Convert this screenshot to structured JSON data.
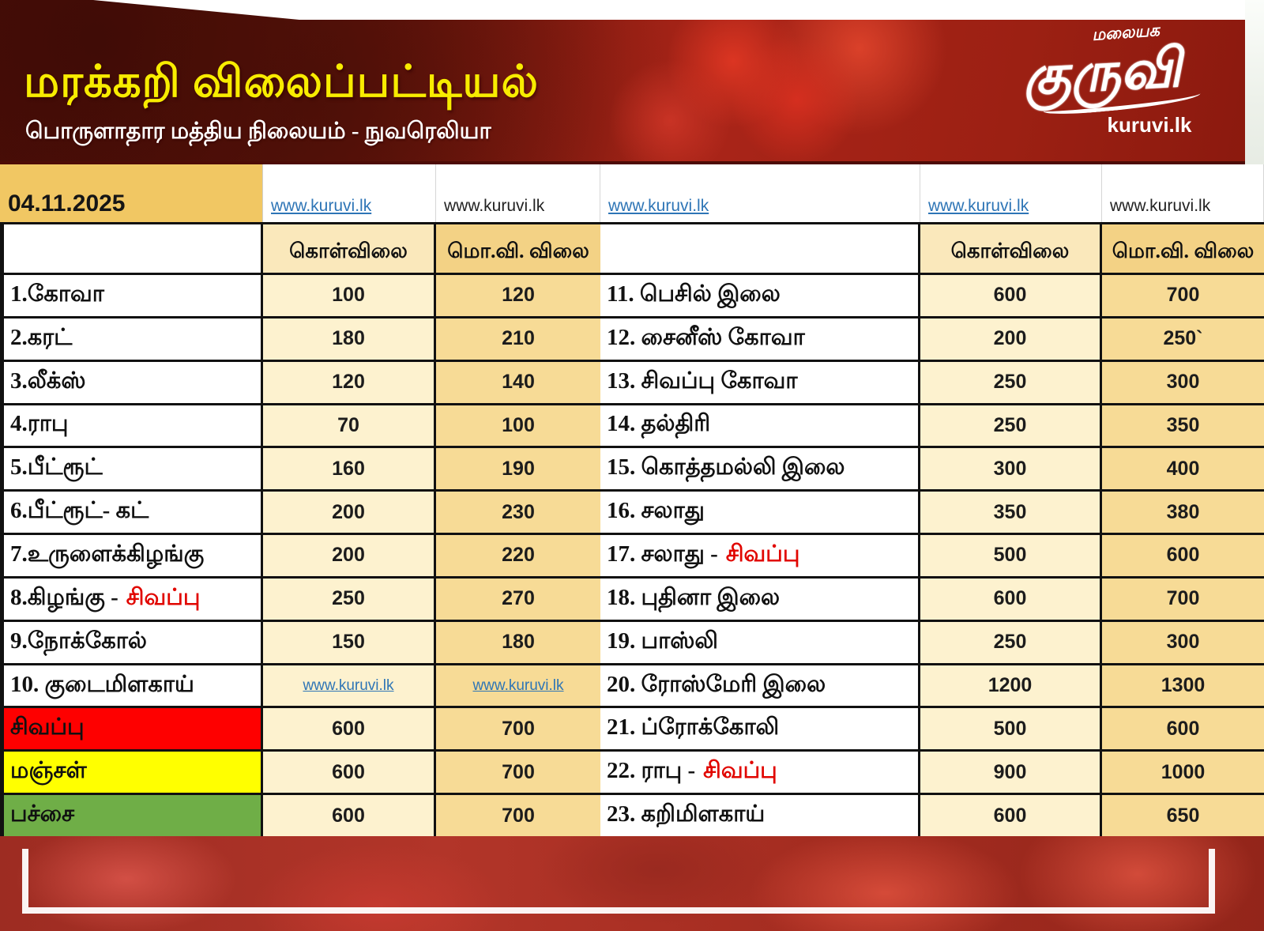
{
  "banner": {
    "title": "மரக்கறி விலைப்பட்டியல்",
    "subtitle": "பொருளாதார மத்திய நிலையம் - நுவரெலியா",
    "logo_top": "மலையக",
    "logo_main": "குருவி",
    "logo_site": "kuruvi.lk"
  },
  "date_row": {
    "date": "04.11.2025",
    "links": [
      {
        "text": "www.kuruvi.lk",
        "style": "blue"
      },
      {
        "text": "www.kuruvi.lk",
        "style": "plain"
      },
      {
        "text": "www.kuruvi.lk",
        "style": "blue"
      },
      {
        "text": "www.kuruvi.lk",
        "style": "blue"
      },
      {
        "text": "www.kuruvi.lk",
        "style": "plain"
      }
    ]
  },
  "table": {
    "headers": {
      "buy": "கொள்விலை",
      "wholesale": "மொ.வி. விலை"
    },
    "left_rows": [
      {
        "name": "1.கோவா",
        "buy": "100",
        "wholesale": "120"
      },
      {
        "name": "2.கரட்",
        "buy": "180",
        "wholesale": "210"
      },
      {
        "name": "3.லீக்ஸ்",
        "buy": "120",
        "wholesale": "140"
      },
      {
        "name": "4.ராபு",
        "buy": "70",
        "wholesale": "100"
      },
      {
        "name": "5.பீட்ரூட்",
        "buy": "160",
        "wholesale": "190"
      },
      {
        "name": "6.பீட்ரூட்- கட்",
        "buy": "200",
        "wholesale": "230"
      },
      {
        "name": "7.உருளைக்கிழங்கு",
        "buy": "200",
        "wholesale": "220"
      },
      {
        "name": "8.கிழங்கு - ",
        "red": "சிவப்பு",
        "buy": "250",
        "wholesale": "270"
      },
      {
        "name": "9.நோக்கோல்",
        "buy": "150",
        "wholesale": "180"
      },
      {
        "name": "10. குடைமிளகாய்",
        "buy_link": "www.kuruvi.lk",
        "wholesale_link": "www.kuruvi.lk"
      },
      {
        "name": "சிவப்பு",
        "bg": "#fe0000",
        "buy": "600",
        "wholesale": "700"
      },
      {
        "name": "மஞ்சள்",
        "bg": "#ffff00",
        "buy": "600",
        "wholesale": "700"
      },
      {
        "name": "பச்சை",
        "bg": "#6fae47",
        "buy": "600",
        "wholesale": "700"
      }
    ],
    "right_rows": [
      {
        "name": "11. பெசில் இலை",
        "buy": "600",
        "wholesale": "700"
      },
      {
        "name": "12. சைனீஸ் கோவா",
        "buy": "200",
        "wholesale": "250`"
      },
      {
        "name": "13. சிவப்பு கோவா",
        "buy": "250",
        "wholesale": "300"
      },
      {
        "name": "14. தல்திரி",
        "buy": "250",
        "wholesale": "350"
      },
      {
        "name": "15. கொத்தமல்லி இலை",
        "buy": "300",
        "wholesale": "400"
      },
      {
        "name": "16. சலாது",
        "buy": "350",
        "wholesale": "380"
      },
      {
        "name": "17. சலாது - ",
        "red": "சிவப்பு",
        "buy": "500",
        "wholesale": "600"
      },
      {
        "name": "18. புதினா இலை",
        "buy": "600",
        "wholesale": "700"
      },
      {
        "name": "19. பாஸ்லி",
        "buy": "250",
        "wholesale": "300"
      },
      {
        "name": "20. ரோஸ்மேரி இலை",
        "buy": "1200",
        "wholesale": "1300"
      },
      {
        "name": "21. ப்ரோக்கோலி",
        "buy": "500",
        "wholesale": "600"
      },
      {
        "name": "22. ராபு - ",
        "red": "சிவப்பு",
        "buy": "900",
        "wholesale": "1000"
      },
      {
        "name": "23. கறிமிளகாய்",
        "buy": "600",
        "wholesale": "650"
      }
    ]
  },
  "colors": {
    "banner_red": "#9c2013",
    "title_yellow": "#f8ec00",
    "date_gold": "#f1c763",
    "header_cream": "#fae8bb",
    "header_gold": "#f3d285",
    "cell_cream": "#fdf2cf",
    "cell_gold": "#f7db96",
    "link_blue": "#2e75b6",
    "accent_red_text": "#e10600",
    "label_red": "#fe0000",
    "label_yellow": "#ffff00",
    "label_green": "#6fae47"
  }
}
